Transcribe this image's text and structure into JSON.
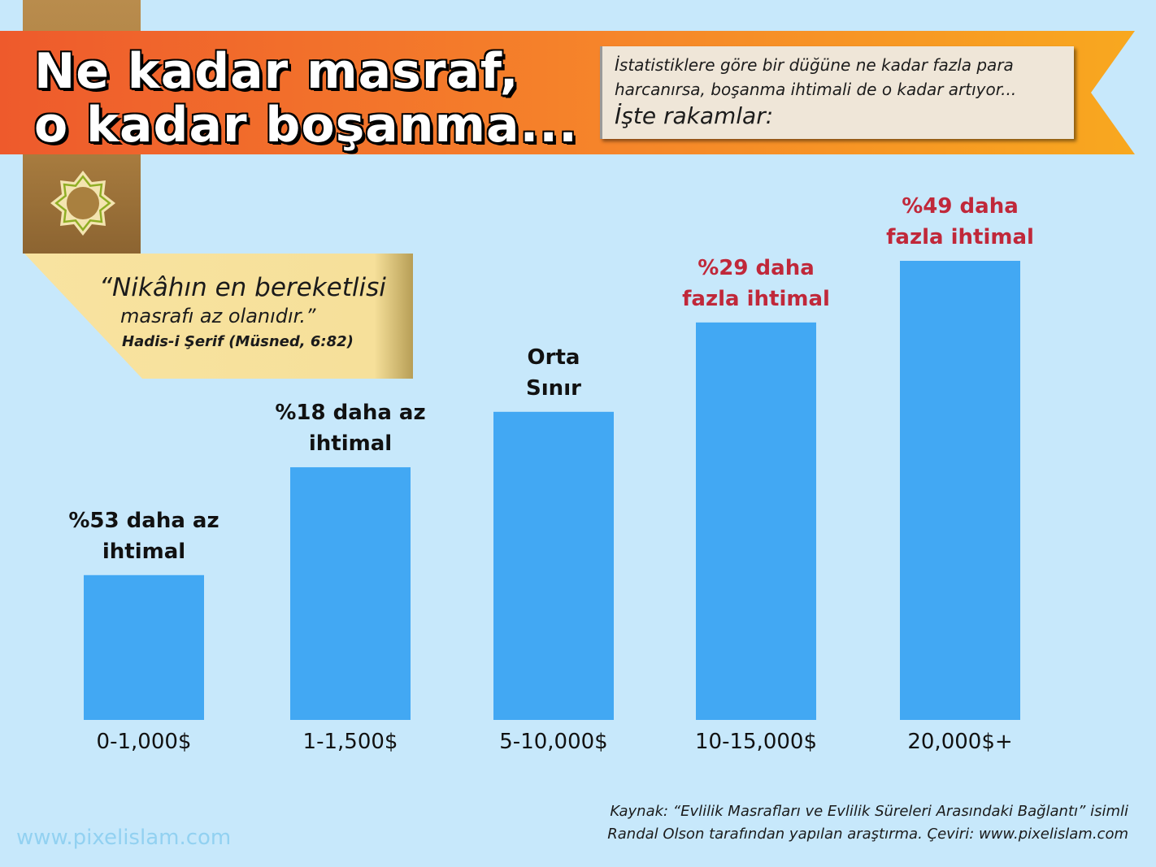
{
  "header": {
    "title_line1": "Ne kadar masraf,",
    "title_line2": "o kadar boşanma...",
    "intro_line1": "İstatistiklere göre bir düğüne ne kadar fazla para",
    "intro_line2": "harcanırsa, boşanma ihtimali de o kadar artıyor...",
    "intro_line3": "İşte rakamlar:"
  },
  "quote": {
    "line1": "“Nikâhın en bereketlisi",
    "line2": "masrafı az olanıdır.”",
    "attribution": "Hadis-i Şerif (Müsned, 6:82)"
  },
  "chart_data": {
    "type": "bar",
    "categories": [
      "0-1,000$",
      "1-1,500$",
      "5-10,000$",
      "10-15,000$",
      "20,000$+"
    ],
    "values": [
      47,
      82,
      100,
      129,
      149
    ],
    "labels": [
      [
        "%53 daha az",
        "ihtimal"
      ],
      [
        "%18 daha az",
        "ihtimal"
      ],
      [
        "Orta",
        "Sınır"
      ],
      [
        "%29 daha",
        "fazla ihtimal"
      ],
      [
        "%49 daha",
        "fazla ihtimal"
      ]
    ],
    "label_colors": [
      "#111111",
      "#111111",
      "#111111",
      "#c0283a",
      "#c0283a"
    ],
    "bar_color": "#42a8f3",
    "ylim": [
      0,
      149
    ],
    "grid": false,
    "legend": "none"
  },
  "footer": {
    "source_line1": "Kaynak: “Evlilik Masrafları ve Evlilik Süreleri Arasındaki Bağlantı” isimli",
    "source_line2": "Randal Olson tarafından yapılan araştırma. Çeviri: www.pixelislam.com",
    "watermark": "www.pixelislam.com"
  },
  "colors": {
    "background": "#c7e8fb",
    "banner_start": "#ee5a2c",
    "banner_end": "#f8a320",
    "tab_brown": "#b4884a",
    "quote_bg": "#f8e39e",
    "intro_box_bg": "#efe6d8"
  }
}
